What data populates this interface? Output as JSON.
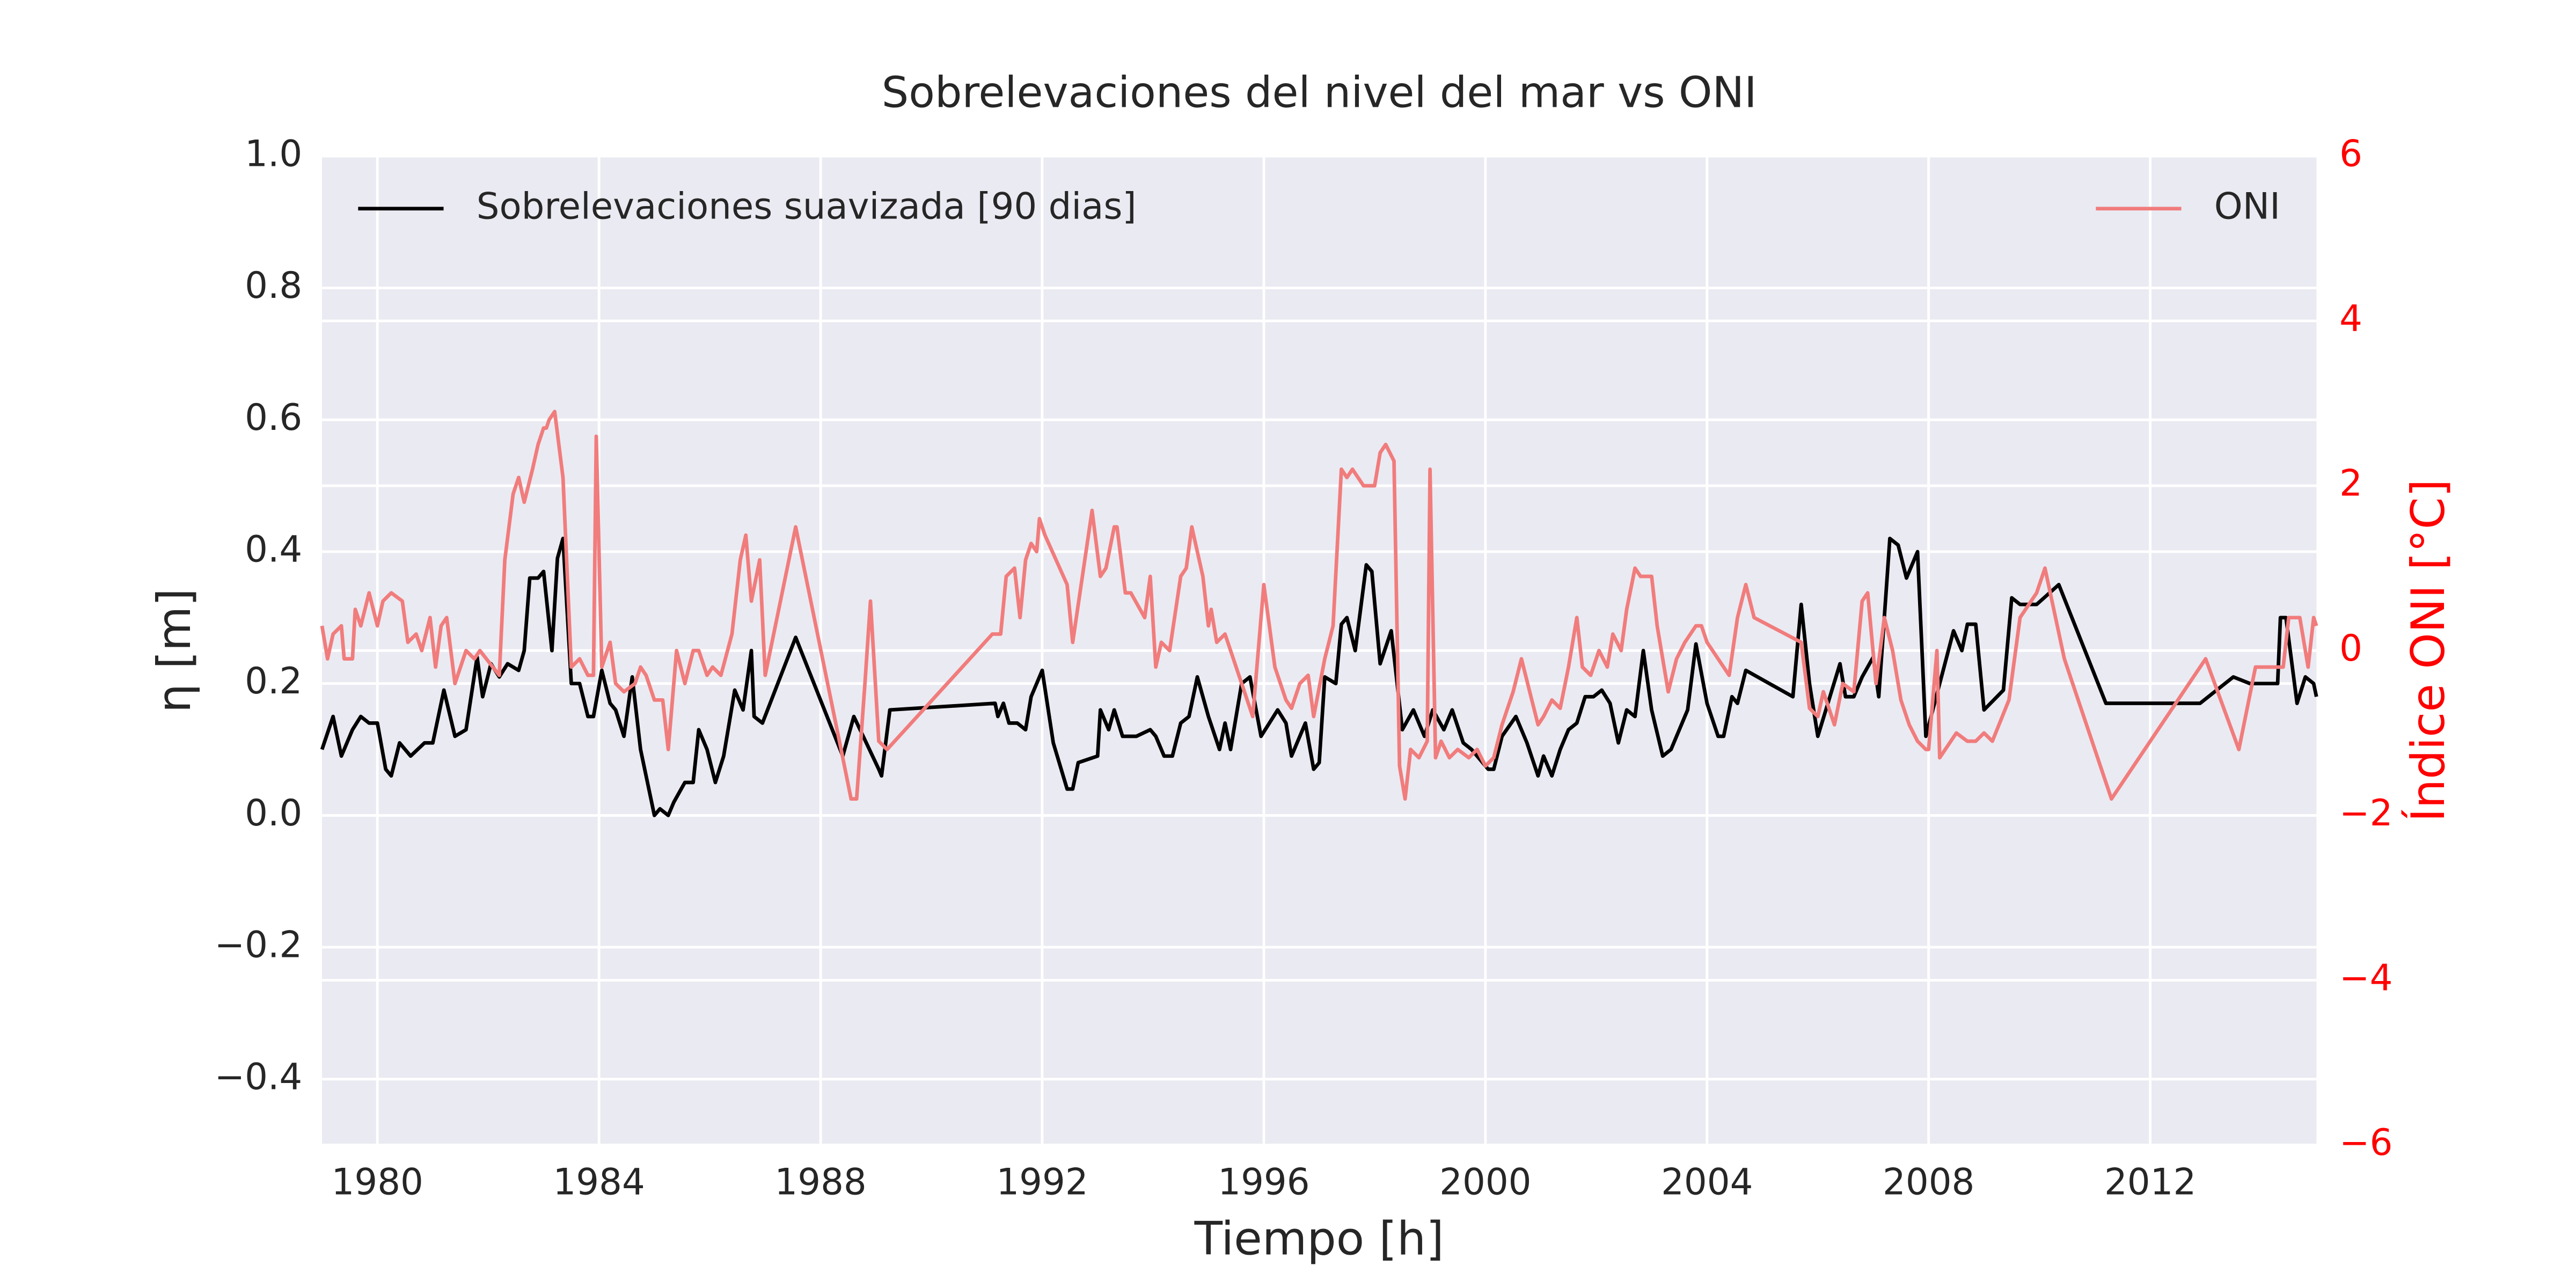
{
  "chart_data": {
    "type": "line",
    "title": "Sobrelevaciones del nivel del mar vs ONI",
    "xlabel": "Tiempo [h]",
    "ylabel": "η [m]",
    "y2label": "Índice ONI [°C]",
    "y2color": "#ff0000",
    "background": "#eaeaf2",
    "grid": true,
    "xlim": [
      1979,
      2015
    ],
    "xticks": [
      1980,
      1984,
      1988,
      1992,
      1996,
      2000,
      2004,
      2008,
      2012
    ],
    "ylim": [
      -0.5,
      1.0
    ],
    "yticks": [
      {
        "value": -0.4,
        "label": "−0.4"
      },
      {
        "value": -0.2,
        "label": "−0.2"
      },
      {
        "value": 0.0,
        "label": "0.0"
      },
      0.2,
      0.4,
      0.6,
      0.8,
      {
        "value": 1.0,
        "label": "1.0"
      }
    ],
    "y2lim": [
      -6,
      6
    ],
    "y2ticks": [
      {
        "value": -6,
        "label": "−6"
      },
      {
        "value": -4,
        "label": "−4"
      },
      {
        "value": -2,
        "label": "−2"
      },
      0,
      2,
      4,
      6
    ],
    "series": [
      {
        "name": "Sobrelevaciones suavizada [90 dias]",
        "color": "#000000",
        "axis": "y",
        "legend_loc": "upper left",
        "x": [
          1979.0,
          1979.2,
          1979.35,
          1979.55,
          1979.7,
          1979.85,
          1980.0,
          1980.15,
          1980.25,
          1980.4,
          1980.6,
          1980.85,
          1981.0,
          1981.2,
          1981.4,
          1981.6,
          1981.8,
          1981.9,
          1982.05,
          1982.2,
          1982.35,
          1982.55,
          1982.65,
          1982.75,
          1982.9,
          1983.0,
          1983.15,
          1983.25,
          1983.35,
          1983.5,
          1983.65,
          1983.8,
          1983.9,
          1984.05,
          1984.2,
          1984.3,
          1984.45,
          1984.6,
          1984.75,
          1984.85,
          1985.0,
          1985.1,
          1985.25,
          1985.35,
          1985.55,
          1985.7,
          1985.8,
          1985.95,
          1986.1,
          1986.25,
          1986.45,
          1986.6,
          1986.75,
          1986.8,
          1986.95,
          1987.55,
          1988.4,
          1988.6,
          1989.05,
          1989.1,
          1989.25,
          1991.15,
          1991.2,
          1991.3,
          1991.4,
          1991.55,
          1991.7,
          1991.8,
          1992.0,
          1992.2,
          1992.45,
          1992.55,
          1992.65,
          1993.0,
          1993.05,
          1993.2,
          1993.3,
          1993.45,
          1993.7,
          1993.95,
          1994.05,
          1994.2,
          1994.35,
          1994.5,
          1994.65,
          1994.8,
          1995.0,
          1995.2,
          1995.3,
          1995.4,
          1995.6,
          1995.75,
          1995.95,
          1996.1,
          1996.25,
          1996.4,
          1996.5,
          1996.75,
          1996.9,
          1997.0,
          1997.1,
          1997.3,
          1997.4,
          1997.5,
          1997.65,
          1997.85,
          1997.95,
          1998.1,
          1998.3,
          1998.5,
          1998.7,
          1998.9,
          1999.05,
          1999.25,
          1999.4,
          1999.6,
          1999.75,
          1999.85,
          2000.05,
          2000.15,
          2000.3,
          2000.55,
          2000.75,
          2000.95,
          2001.05,
          2001.2,
          2001.35,
          2001.5,
          2001.65,
          2001.8,
          2001.95,
          2002.1,
          2002.25,
          2002.4,
          2002.55,
          2002.7,
          2002.85,
          2003.0,
          2003.2,
          2003.35,
          2003.65,
          2003.8,
          2004.0,
          2004.2,
          2004.3,
          2004.45,
          2004.55,
          2004.7,
          2005.55,
          2005.7,
          2005.85,
          2006.0,
          2006.4,
          2006.5,
          2006.65,
          2006.8,
          2007.0,
          2007.1,
          2007.3,
          2007.45,
          2007.6,
          2007.8,
          2007.95,
          2008.45,
          2008.6,
          2008.7,
          2008.85,
          2009.0,
          2009.35,
          2009.5,
          2009.65,
          2009.95,
          2010.35,
          2011.2,
          2012.9,
          2013.5,
          2013.8,
          2014.3,
          2014.35,
          2014.45,
          2014.65,
          2014.8,
          2014.95,
          2015.0
        ],
        "values": [
          0.1,
          0.15,
          0.09,
          0.13,
          0.15,
          0.14,
          0.14,
          0.07,
          0.06,
          0.11,
          0.09,
          0.11,
          0.11,
          0.19,
          0.12,
          0.13,
          0.24,
          0.18,
          0.23,
          0.21,
          0.23,
          0.22,
          0.25,
          0.36,
          0.36,
          0.37,
          0.25,
          0.39,
          0.42,
          0.2,
          0.2,
          0.15,
          0.15,
          0.22,
          0.17,
          0.16,
          0.12,
          0.21,
          0.1,
          0.06,
          0.0,
          0.01,
          0.0,
          0.02,
          0.05,
          0.05,
          0.13,
          0.1,
          0.05,
          0.09,
          0.19,
          0.16,
          0.25,
          0.15,
          0.14,
          0.27,
          0.09,
          0.15,
          0.07,
          0.06,
          0.16,
          0.17,
          0.15,
          0.17,
          0.14,
          0.14,
          0.13,
          0.18,
          0.22,
          0.11,
          0.04,
          0.04,
          0.08,
          0.09,
          0.16,
          0.13,
          0.16,
          0.12,
          0.12,
          0.13,
          0.12,
          0.09,
          0.09,
          0.14,
          0.15,
          0.21,
          0.15,
          0.1,
          0.14,
          0.1,
          0.2,
          0.21,
          0.12,
          0.14,
          0.16,
          0.14,
          0.09,
          0.14,
          0.07,
          0.08,
          0.21,
          0.2,
          0.29,
          0.3,
          0.25,
          0.38,
          0.37,
          0.23,
          0.28,
          0.13,
          0.16,
          0.12,
          0.16,
          0.13,
          0.16,
          0.11,
          0.1,
          0.09,
          0.07,
          0.07,
          0.12,
          0.15,
          0.11,
          0.06,
          0.09,
          0.06,
          0.1,
          0.13,
          0.14,
          0.18,
          0.18,
          0.19,
          0.17,
          0.11,
          0.16,
          0.15,
          0.25,
          0.16,
          0.09,
          0.1,
          0.16,
          0.26,
          0.17,
          0.12,
          0.12,
          0.18,
          0.17,
          0.22,
          0.18,
          0.32,
          0.2,
          0.12,
          0.23,
          0.18,
          0.18,
          0.21,
          0.24,
          0.18,
          0.42,
          0.41,
          0.36,
          0.4,
          0.12,
          0.28,
          0.25,
          0.29,
          0.29,
          0.16,
          0.19,
          0.33,
          0.32,
          0.32,
          0.35,
          0.17,
          0.17,
          0.21,
          0.2,
          0.2,
          0.3,
          0.3,
          0.17,
          0.21,
          0.2,
          0.18
        ]
      },
      {
        "name": "ONI",
        "color": "#f17c7c",
        "axis": "y2",
        "legend_loc": "upper right",
        "x": [
          1979.0,
          1979.1,
          1979.2,
          1979.35,
          1979.4,
          1979.55,
          1979.6,
          1979.7,
          1979.85,
          1980.0,
          1980.1,
          1980.25,
          1980.45,
          1980.55,
          1980.7,
          1980.8,
          1980.95,
          1981.05,
          1981.15,
          1981.25,
          1981.4,
          1981.6,
          1981.75,
          1981.85,
          1982.2,
          1982.3,
          1982.45,
          1982.55,
          1982.65,
          1982.8,
          1982.9,
          1983.0,
          1983.05,
          1983.1,
          1983.2,
          1983.35,
          1983.5,
          1983.65,
          1983.8,
          1983.9,
          1983.95,
          1984.05,
          1984.2,
          1984.3,
          1984.45,
          1984.65,
          1984.75,
          1984.85,
          1985.0,
          1985.15,
          1985.25,
          1985.4,
          1985.55,
          1985.7,
          1985.8,
          1985.95,
          1986.05,
          1986.2,
          1986.4,
          1986.55,
          1986.65,
          1986.75,
          1986.9,
          1987.0,
          1987.55,
          1988.4,
          1988.55,
          1988.65,
          1988.8,
          1988.9,
          1989.05,
          1989.2,
          1991.1,
          1991.25,
          1991.35,
          1991.5,
          1991.6,
          1991.7,
          1991.8,
          1991.9,
          1991.95,
          1992.05,
          1992.45,
          1992.55,
          1992.9,
          1993.05,
          1993.15,
          1993.3,
          1993.35,
          1993.5,
          1993.6,
          1993.85,
          1993.95,
          1994.05,
          1994.15,
          1994.3,
          1994.5,
          1994.6,
          1994.7,
          1994.9,
          1995.0,
          1995.05,
          1995.15,
          1995.3,
          1995.45,
          1995.65,
          1995.8,
          1996.0,
          1996.2,
          1996.4,
          1996.5,
          1996.65,
          1996.8,
          1996.9,
          1997.1,
          1997.25,
          1997.4,
          1997.5,
          1997.6,
          1997.7,
          1997.8,
          1997.95,
          1998.0,
          1998.1,
          1998.2,
          1998.35,
          1998.45,
          1998.55,
          1998.65,
          1998.8,
          1998.95,
          1999.0,
          1999.1,
          1999.2,
          1999.35,
          1999.5,
          1999.7,
          1999.85,
          2000.0,
          2000.15,
          2000.3,
          2000.5,
          2000.65,
          2000.8,
          2000.95,
          2001.05,
          2001.2,
          2001.35,
          2001.5,
          2001.65,
          2001.75,
          2001.9,
          2002.05,
          2002.2,
          2002.3,
          2002.45,
          2002.55,
          2002.7,
          2002.8,
          2003.0,
          2003.1,
          2003.3,
          2003.45,
          2003.6,
          2003.8,
          2003.9,
          2004.0,
          2004.4,
          2004.55,
          2004.7,
          2004.85,
          2005.7,
          2005.85,
          2006.0,
          2006.1,
          2006.3,
          2006.45,
          2006.65,
          2006.8,
          2006.9,
          2007.05,
          2007.2,
          2007.35,
          2007.5,
          2007.65,
          2007.8,
          2007.95,
          2008.0,
          2008.15,
          2008.2,
          2008.5,
          2008.7,
          2008.85,
          2009.0,
          2009.15,
          2009.45,
          2009.65,
          2009.95,
          2010.1,
          2010.45,
          2011.3,
          2013.0,
          2013.6,
          2013.9,
          2014.4,
          2014.5,
          2014.7,
          2014.85,
          2014.95,
          2015.0
        ],
        "values": [
          0.3,
          -0.1,
          0.2,
          0.3,
          -0.1,
          -0.1,
          0.5,
          0.3,
          0.7,
          0.3,
          0.6,
          0.7,
          0.6,
          0.1,
          0.2,
          0.0,
          0.4,
          -0.2,
          0.3,
          0.4,
          -0.4,
          0.0,
          -0.1,
          0.0,
          -0.3,
          1.1,
          1.9,
          2.1,
          1.8,
          2.2,
          2.5,
          2.7,
          2.7,
          2.8,
          2.9,
          2.1,
          -0.2,
          -0.1,
          -0.3,
          -0.3,
          2.6,
          -0.2,
          0.1,
          -0.4,
          -0.5,
          -0.4,
          -0.2,
          -0.3,
          -0.6,
          -0.6,
          -1.2,
          0.0,
          -0.4,
          0.0,
          0.0,
          -0.3,
          -0.2,
          -0.3,
          0.2,
          1.1,
          1.4,
          0.6,
          1.1,
          -0.3,
          1.5,
          -1.3,
          -1.8,
          -1.8,
          -0.4,
          0.6,
          -1.1,
          -1.2,
          0.2,
          0.2,
          0.9,
          1.0,
          0.4,
          1.1,
          1.3,
          1.2,
          1.6,
          1.4,
          0.8,
          0.1,
          1.7,
          0.9,
          1.0,
          1.5,
          1.5,
          0.7,
          0.7,
          0.4,
          0.9,
          -0.2,
          0.1,
          0.0,
          0.9,
          1.0,
          1.5,
          0.9,
          0.3,
          0.5,
          0.1,
          0.2,
          -0.1,
          -0.5,
          -0.8,
          0.8,
          -0.2,
          -0.6,
          -0.7,
          -0.4,
          -0.3,
          -0.8,
          -0.1,
          0.3,
          2.2,
          2.1,
          2.2,
          2.1,
          2.0,
          2.0,
          2.0,
          2.4,
          2.5,
          2.3,
          -1.4,
          -1.8,
          -1.2,
          -1.3,
          -1.1,
          2.2,
          -1.3,
          -1.1,
          -1.3,
          -1.2,
          -1.3,
          -1.2,
          -1.4,
          -1.3,
          -0.9,
          -0.5,
          -0.1,
          -0.5,
          -0.9,
          -0.8,
          -0.6,
          -0.7,
          -0.2,
          0.4,
          -0.2,
          -0.3,
          0.0,
          -0.2,
          0.2,
          0.0,
          0.5,
          1.0,
          0.9,
          0.9,
          0.3,
          -0.5,
          -0.1,
          0.1,
          0.3,
          0.3,
          0.1,
          -0.3,
          0.4,
          0.8,
          0.4,
          0.1,
          -0.7,
          -0.8,
          -0.5,
          -0.9,
          -0.4,
          -0.5,
          0.6,
          0.7,
          -0.4,
          0.4,
          0.0,
          -0.6,
          -0.9,
          -1.1,
          -1.2,
          -1.2,
          0.0,
          -1.3,
          -1.0,
          -1.1,
          -1.1,
          -1.0,
          -1.1,
          -0.6,
          0.4,
          0.7,
          1.0,
          -0.1,
          -1.8,
          -0.1,
          -1.2,
          -0.2,
          -0.2,
          0.4,
          0.4,
          -0.2,
          0.4,
          0.3
        ]
      }
    ]
  }
}
